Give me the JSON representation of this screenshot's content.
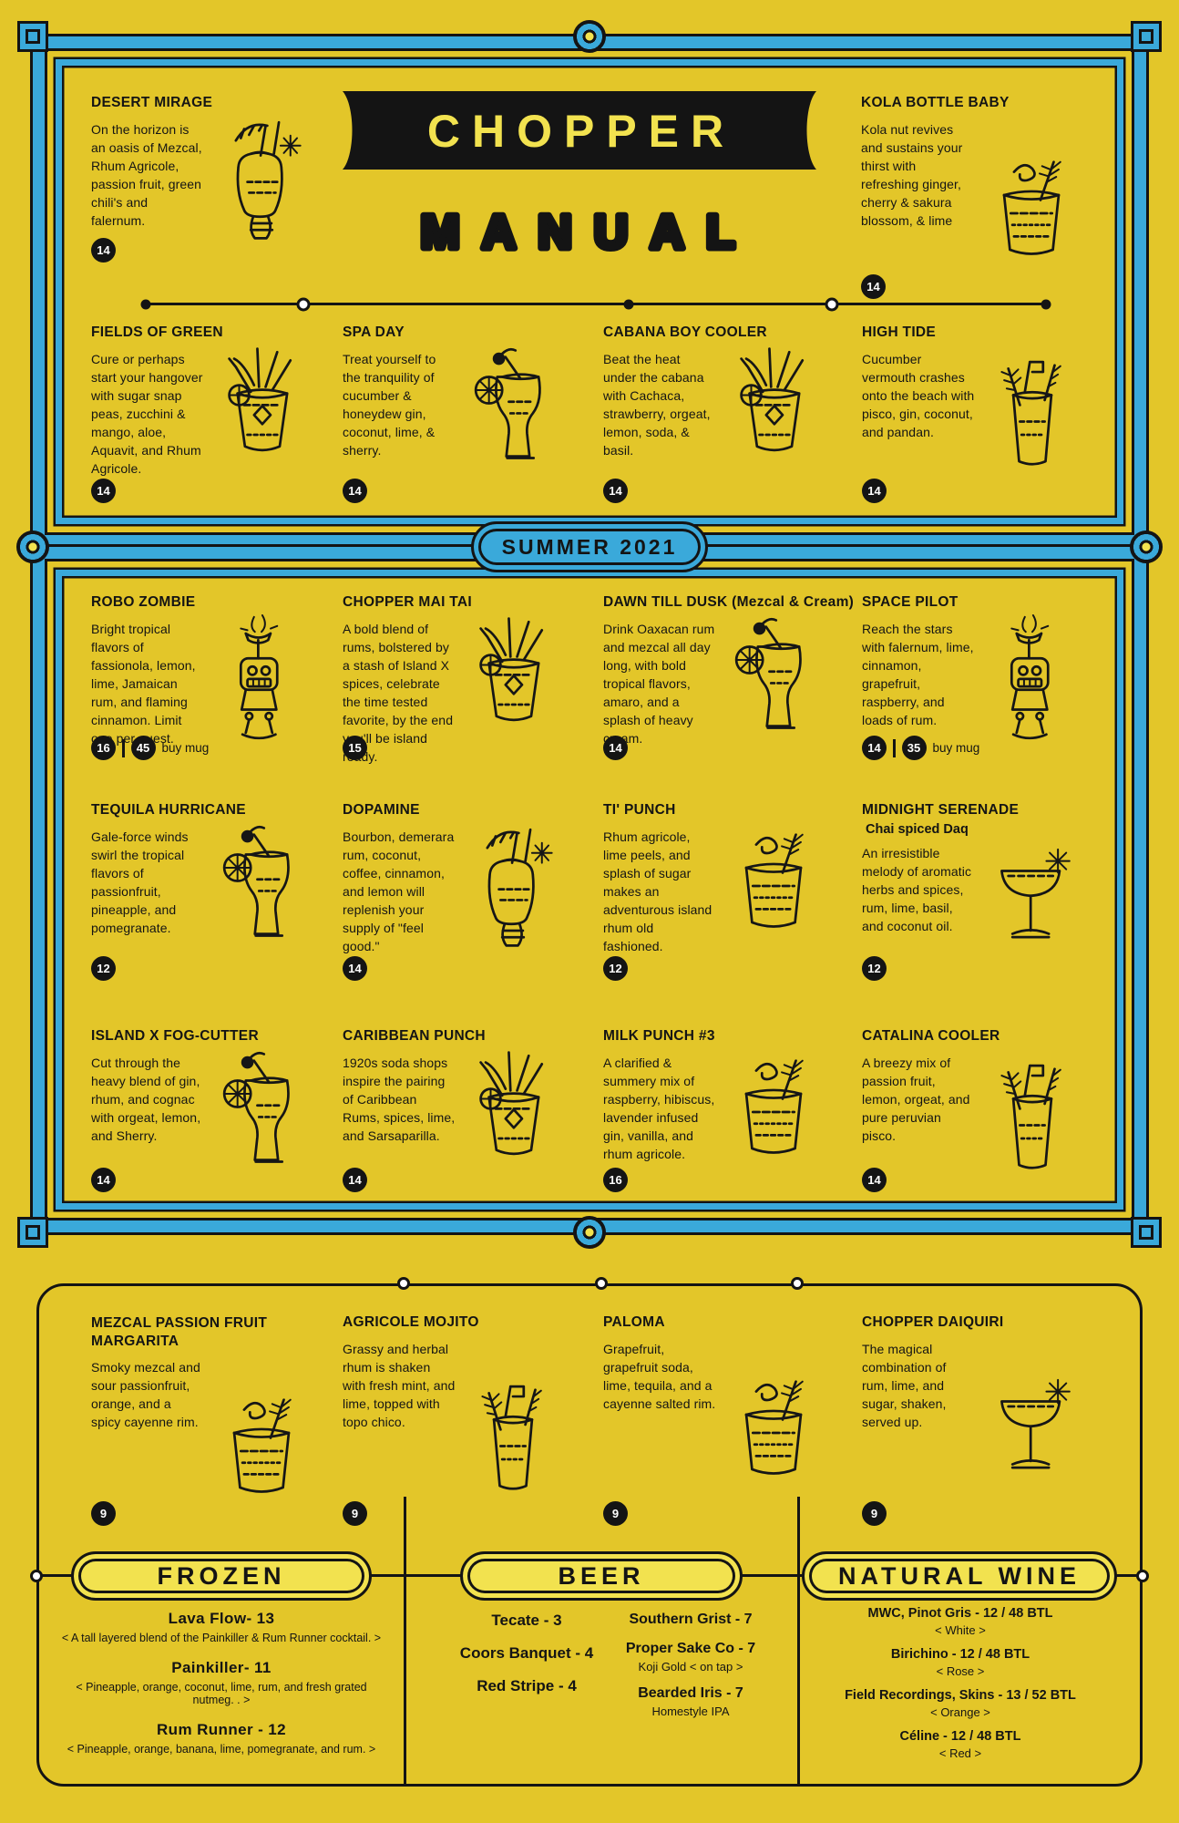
{
  "colors": {
    "paper_yellow": "#E3C629",
    "pale_yellow": "#F2E24F",
    "frame_blue": "#3AA9DA",
    "ink": "#141414"
  },
  "logo": {
    "line1": "CHOPPER",
    "line2": "MANUAL"
  },
  "season_badge": "SUMMER 2021",
  "cocktails": {
    "intro": [
      {
        "name": "DESERT MIRAGE",
        "description": "On the horizon is an oasis of Mezcal, Rhum Agricole, passion fruit, green chili's and falernum.",
        "price": "14",
        "illustration": "tiki-mug"
      },
      {
        "name": "KOLA BOTTLE BABY",
        "description": "Kola nut revives and sustains your thirst with refreshing ginger, cherry & sakura blossom, & lime",
        "price": "14",
        "illustration": "rocks-glass"
      }
    ],
    "classics": [
      {
        "name": "FIELDS OF GREEN",
        "description": "Cure or perhaps start your hangover with sugar snap peas, zucchini & mango, aloe, Aquavit, and Rhum Agricole.",
        "price": "14",
        "illustration": "tiki-cup"
      },
      {
        "name": "SPA DAY",
        "description": "Treat yourself to the tranquility of cucumber & honeydew gin, coconut, lime, & sherry.",
        "price": "14",
        "illustration": "hurricane-glass"
      },
      {
        "name": "CABANA BOY COOLER",
        "description": "Beat the heat under the cabana with Cachaca, strawberry, orgeat, lemon, soda, & basil.",
        "price": "14",
        "illustration": "tiki-cup"
      },
      {
        "name": "HIGH TIDE",
        "description": "Cucumber vermouth crashes onto the beach with pisco, gin, coconut, and pandan.",
        "price": "14",
        "illustration": "highball-glass"
      }
    ],
    "summer": [
      {
        "name": "ROBO ZOMBIE",
        "description": "Bright tropical flavors of fassionola, lemon, lime, Jamaican rum, and flaming cinnamon. Limit one per guest.",
        "price": "16",
        "price2": "45",
        "price2_label": "buy mug",
        "illustration": "robot-tiki"
      },
      {
        "name": "CHOPPER MAI TAI",
        "description": "A bold blend of rums, bolstered by a stash of Island X spices, celebrate the time tested favorite, by the end you'll be island ready.",
        "price": "15",
        "illustration": "tiki-cup"
      },
      {
        "name": "DAWN TILL DUSK (Mezcal & Cream)",
        "description": "Drink Oaxacan rum and mezcal all day long, with bold tropical flavors, amaro, and a splash of heavy cream.",
        "price": "14",
        "illustration": "hurricane-glass"
      },
      {
        "name": "SPACE PILOT",
        "description": "Reach the stars with falernum, lime, cinnamon, grapefruit, raspberry, and loads of rum.",
        "price": "14",
        "price2": "35",
        "price2_label": "buy mug",
        "illustration": "robot-tiki"
      },
      {
        "name": "TEQUILA HURRICANE",
        "description": "Gale-force winds swirl the tropical flavors of passionfruit, pineapple, and pomegranate.",
        "price": "12",
        "illustration": "hurricane-glass"
      },
      {
        "name": "DOPAMINE",
        "description": "Bourbon, demerara rum, coconut, coffee, cinnamon, and lemon will replenish your supply of \"feel good.\"",
        "price": "14",
        "illustration": "tiki-mug"
      },
      {
        "name": "TI' PUNCH",
        "description": "Rhum agricole, lime peels, and splash of sugar makes an adventurous island rhum old fashioned.",
        "price": "12",
        "illustration": "rocks-glass"
      },
      {
        "name": "MIDNIGHT SERENADE",
        "subtitle": "Chai spiced Daq",
        "description": "An irresistible melody of aromatic herbs and spices, rum, lime, basil, and coconut oil.",
        "price": "12",
        "illustration": "coupe-glass"
      },
      {
        "name": "ISLAND X FOG-CUTTER",
        "description": "Cut through the heavy blend of gin, rhum, and cognac with orgeat, lemon, and Sherry.",
        "price": "14",
        "illustration": "hurricane-glass"
      },
      {
        "name": "CARIBBEAN PUNCH",
        "description": "1920s soda shops inspire the pairing of Caribbean Rums, spices, lime, and Sarsaparilla.",
        "price": "14",
        "illustration": "tiki-cup"
      },
      {
        "name": "MILK PUNCH #3",
        "description": "A clarified & summery mix of raspberry, hibiscus, lavender infused gin, vanilla, and rhum agricole.",
        "price": "16",
        "illustration": "rocks-glass"
      },
      {
        "name": "CATALINA COOLER",
        "description": "A breezy mix of passion fruit, lemon, orgeat, and pure peruvian pisco.",
        "price": "14",
        "illustration": "highball-glass"
      }
    ],
    "house": [
      {
        "name": "MEZCAL PASSION FRUIT MARGARITA",
        "description": "Smoky mezcal and sour passionfruit, orange, and a spicy cayenne rim.",
        "price": "9",
        "illustration": "rocks-glass"
      },
      {
        "name": "AGRICOLE MOJITO",
        "description": "Grassy and herbal rhum is shaken with fresh mint, and lime, topped with topo chico.",
        "price": "9",
        "illustration": "highball-glass"
      },
      {
        "name": "PALOMA",
        "description": "Grapefruit, grapefruit soda, lime, tequila, and a cayenne salted rim.",
        "price": "9",
        "illustration": "rocks-glass"
      },
      {
        "name": "CHOPPER DAIQUIRI",
        "description": "The magical combination of rum, lime, and sugar, shaken, served up.",
        "price": "9",
        "illustration": "coupe-glass"
      }
    ]
  },
  "frozen": {
    "title": "FROZEN",
    "items": [
      {
        "name": "Lava Flow- 13",
        "note": "< A tall layered blend of the Painkiller & Rum Runner cocktail. >"
      },
      {
        "name": "Painkiller- 11",
        "note": "< Pineapple, orange, coconut, lime, rum, and fresh grated nutmeg. . >"
      },
      {
        "name": "Rum Runner - 12",
        "note": "< Pineapple, orange, banana, lime, pomegranate, and rum. >"
      }
    ]
  },
  "beer": {
    "title": "BEER",
    "taps": [
      "Tecate - 3",
      "Coors Banquet - 4",
      "Red Stripe - 4"
    ],
    "crafts": [
      {
        "name": "Southern Grist - 7"
      },
      {
        "name": "Proper Sake Co - 7",
        "note": "Koji Gold < on tap >"
      },
      {
        "name": "Bearded Iris - 7",
        "note": "Homestyle IPA"
      }
    ]
  },
  "wine": {
    "title": "NATURAL WINE",
    "items": [
      {
        "name": "MWC, Pinot Gris - 12 / 48 BTL",
        "note": "< White >"
      },
      {
        "name": "Birichino - 12 / 48 BTL",
        "note": "< Rose >"
      },
      {
        "name": "Field Recordings, Skins - 13 / 52 BTL",
        "note": "< Orange >"
      },
      {
        "name": "Céline - 12 / 48 BTL",
        "note": "< Red >"
      }
    ]
  }
}
